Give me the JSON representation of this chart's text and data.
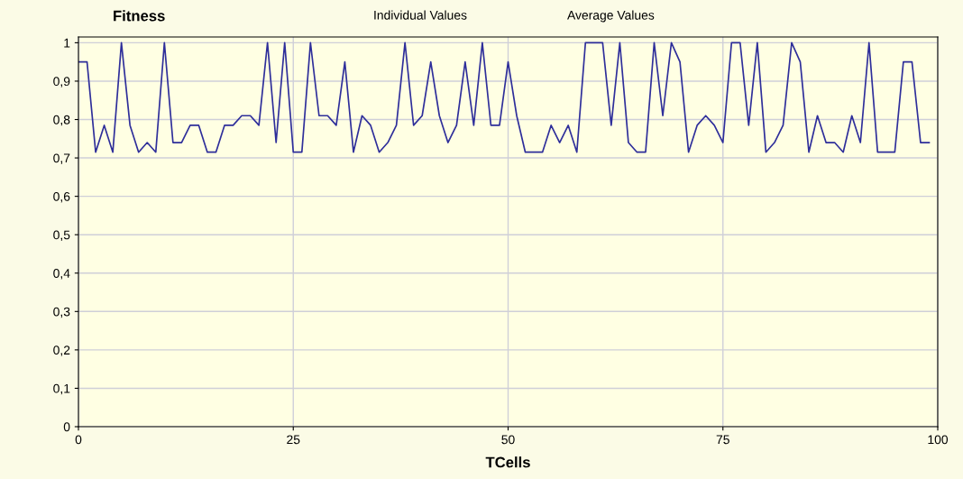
{
  "chart_data": {
    "type": "line",
    "title": "Fitness",
    "xlabel": "TCells",
    "annotations": [
      "Individual Values",
      "Average Values"
    ],
    "x": [
      0,
      1,
      2,
      3,
      4,
      5,
      6,
      7,
      8,
      9,
      10,
      11,
      12,
      13,
      14,
      15,
      16,
      17,
      18,
      19,
      20,
      21,
      22,
      23,
      24,
      25,
      26,
      27,
      28,
      29,
      30,
      31,
      32,
      33,
      34,
      35,
      36,
      37,
      38,
      39,
      40,
      41,
      42,
      43,
      44,
      45,
      46,
      47,
      48,
      49,
      50,
      51,
      52,
      53,
      54,
      55,
      56,
      57,
      58,
      59,
      60,
      61,
      62,
      63,
      64,
      65,
      66,
      67,
      68,
      69,
      70,
      71,
      72,
      73,
      74,
      75,
      76,
      77,
      78,
      79,
      80,
      81,
      82,
      83,
      84,
      85,
      86,
      87,
      88,
      89,
      90,
      91,
      92,
      93,
      94,
      95,
      96,
      97,
      98,
      99
    ],
    "series": [
      {
        "color": "#2e2e9a",
        "values": [
          0.95,
          0.95,
          0.715,
          0.785,
          0.715,
          1,
          0.785,
          0.715,
          0.74,
          0.715,
          1,
          0.74,
          0.74,
          0.785,
          0.785,
          0.715,
          0.715,
          0.785,
          0.785,
          0.81,
          0.81,
          0.785,
          1,
          0.74,
          1,
          0.715,
          0.715,
          1,
          0.81,
          0.81,
          0.785,
          0.95,
          0.715,
          0.81,
          0.785,
          0.715,
          0.74,
          0.785,
          1,
          0.785,
          0.81,
          0.95,
          0.81,
          0.74,
          0.785,
          0.95,
          0.785,
          1,
          0.785,
          0.785,
          0.95,
          0.81,
          0.715,
          0.715,
          0.715,
          0.785,
          0.74,
          0.785,
          0.715,
          1,
          1,
          1,
          0.785,
          1,
          0.74,
          0.715,
          0.715,
          1,
          0.81,
          1,
          0.95,
          0.715,
          0.785,
          0.81,
          0.785,
          0.74,
          1,
          1,
          0.785,
          1,
          0.715,
          0.74,
          0.785,
          1,
          0.95,
          0.715,
          0.81,
          0.74,
          0.74,
          0.715,
          0.81,
          0.74,
          1,
          0.715,
          0.715,
          0.715,
          0.95,
          0.95,
          0.74,
          0.74
        ]
      }
    ],
    "xlim": [
      0,
      100
    ],
    "xticks": [
      0,
      25,
      50,
      75,
      100
    ],
    "ylim": [
      0,
      1.015
    ],
    "yticks": [
      0,
      {
        "value": 0.1,
        "label": "0,1"
      },
      {
        "value": 0.2,
        "label": "0,2"
      },
      {
        "value": 0.3,
        "label": "0,3"
      },
      {
        "value": 0.4,
        "label": "0,4"
      },
      {
        "value": 0.5,
        "label": "0,5"
      },
      {
        "value": 0.6,
        "label": "0,6"
      },
      {
        "value": 0.7,
        "label": "0,7"
      },
      {
        "value": 0.8,
        "label": "0,8"
      },
      {
        "value": 0.9,
        "label": "0,9"
      },
      1
    ],
    "grid": true,
    "legend": false,
    "marker": "none",
    "line_style": "solid"
  }
}
